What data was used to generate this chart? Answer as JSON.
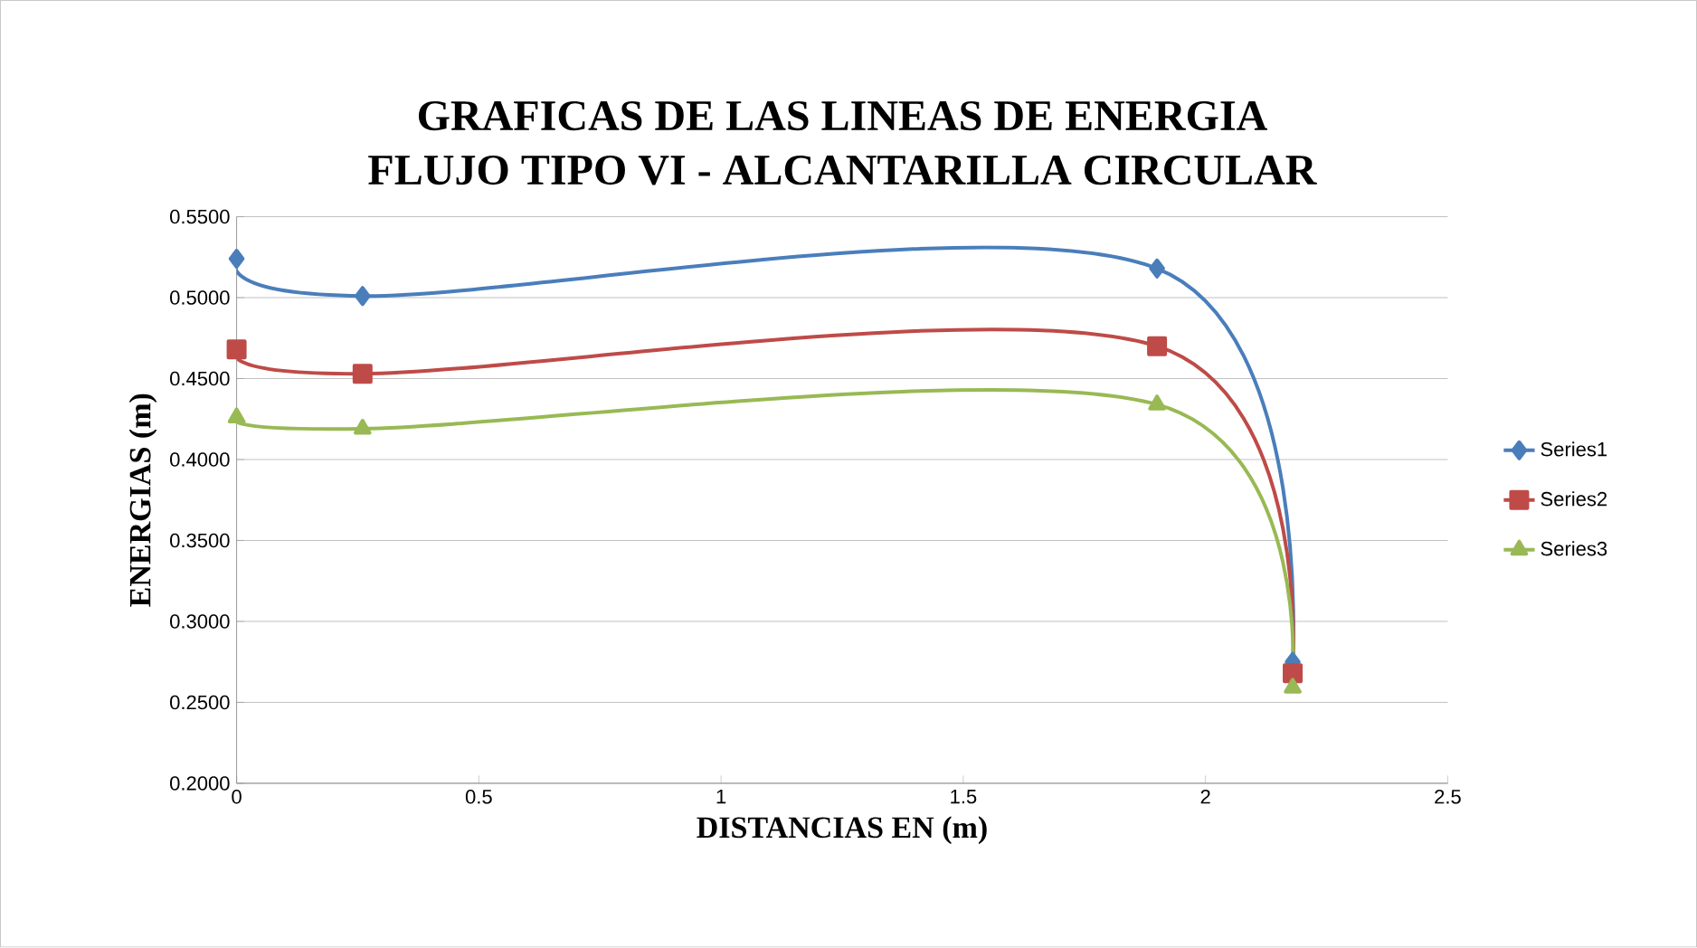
{
  "chart_data": {
    "type": "line",
    "title": "GRAFICAS DE LAS LINEAS DE ENERGIA",
    "subtitle": "FLUJO TIPO VI - ALCANTARILLA CIRCULAR",
    "xlabel": "DISTANCIAS EN (m)",
    "ylabel": "ENERGIAS (m)",
    "x": [
      0,
      0.26,
      1.9,
      2.18
    ],
    "series": [
      {
        "name": "Series1",
        "color": "#4a7ebb",
        "marker": "diamond",
        "values": [
          0.524,
          0.501,
          0.518,
          0.275
        ]
      },
      {
        "name": "Series2",
        "color": "#be4b48",
        "marker": "square",
        "values": [
          0.468,
          0.453,
          0.47,
          0.268
        ]
      },
      {
        "name": "Series3",
        "color": "#98b954",
        "marker": "triangle",
        "values": [
          0.426,
          0.419,
          0.434,
          0.259
        ]
      }
    ],
    "xlim": [
      0,
      2.5
    ],
    "xticks": [
      0,
      0.5,
      1,
      1.5,
      2,
      2.5
    ],
    "ylim": [
      0.2,
      0.55
    ],
    "yticks": [
      {
        "value": 0.2,
        "label": "0.2000"
      },
      {
        "value": 0.25,
        "label": "0.2500"
      },
      {
        "value": 0.3,
        "label": "0.3000"
      },
      {
        "value": 0.35,
        "label": "0.3500"
      },
      {
        "value": 0.4,
        "label": "0.4000"
      },
      {
        "value": 0.45,
        "label": "0.4500"
      },
      {
        "value": 0.5,
        "label": "0.5000"
      },
      {
        "value": 0.55,
        "label": "0.5500"
      }
    ],
    "grid": "y",
    "legend": "right",
    "line_style": "solid"
  }
}
